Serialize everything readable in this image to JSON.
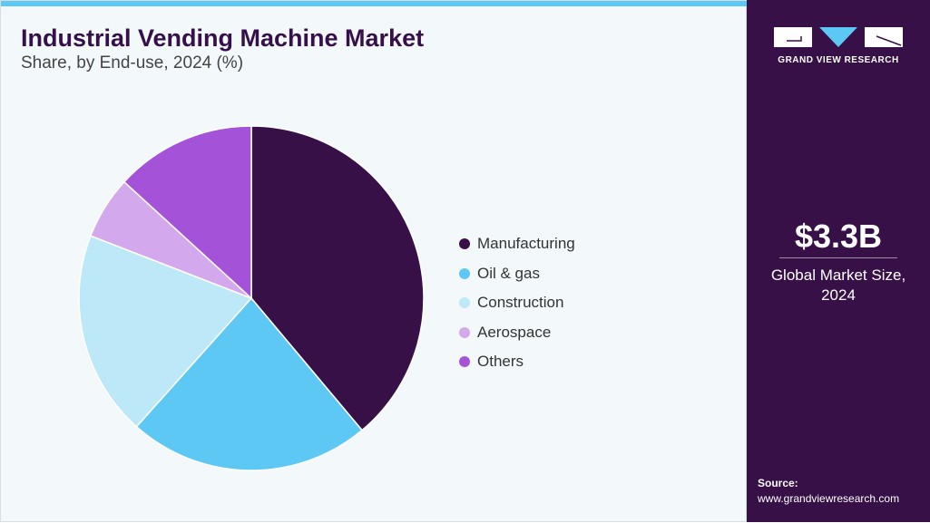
{
  "chart_data": {
    "type": "pie",
    "title": "Industrial Vending Machine Market",
    "subtitle": "Share, by End-use, 2024 (%)",
    "categories": [
      "Manufacturing",
      "Oil & gas",
      "Construction",
      "Aerospace",
      "Others"
    ],
    "values": [
      38.9,
      22.7,
      19.3,
      5.9,
      13.2
    ],
    "colors": [
      "#361046",
      "#5ec8f4",
      "#bde8f8",
      "#d3a8ec",
      "#a453d8"
    ],
    "legend_position": "right"
  },
  "side": {
    "logo_text": "GRAND VIEW RESEARCH",
    "market_size": "$3.3B",
    "market_label_1": "Global Market Size,",
    "market_label_2": "2024",
    "source_label": "Source:",
    "source_url": "www.grandviewresearch.com"
  }
}
